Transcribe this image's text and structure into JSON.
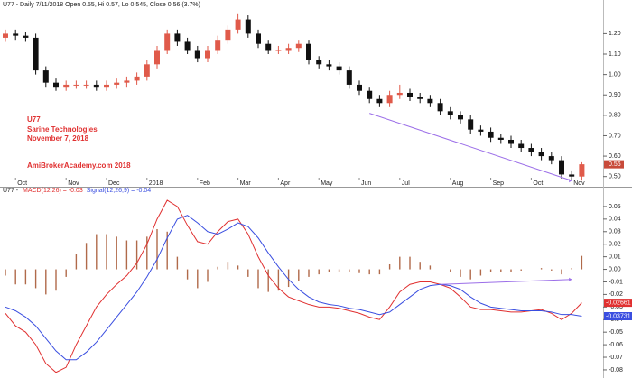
{
  "chart_data": [
    {
      "type": "candlestick",
      "header": "U77 - Daily 7/11/2018 Open 0.55, Hi 0.57, Lo 0.545, Close 0.56 (3.7%)",
      "annotations": [
        "U77",
        "Sarine Technologies",
        "November 7, 2018",
        "AmiBrokerAcademy.com  2018"
      ],
      "annotation_color": "#e03030",
      "categories": [
        null,
        "Oct",
        null,
        null,
        null,
        null,
        "Nov",
        null,
        null,
        null,
        "Dec",
        null,
        null,
        null,
        "2018",
        null,
        null,
        null,
        null,
        "Feb",
        null,
        null,
        null,
        "Mar",
        null,
        null,
        null,
        "Apr",
        null,
        null,
        null,
        "May",
        null,
        null,
        null,
        "Jun",
        null,
        null,
        null,
        "Jul",
        null,
        null,
        null,
        null,
        "Aug",
        null,
        null,
        null,
        "Sep",
        null,
        null,
        null,
        "Oct",
        null,
        null,
        null,
        "Nov",
        null
      ],
      "open": [
        1.18,
        1.2,
        1.19,
        1.18,
        1.02,
        0.96,
        0.94,
        0.95,
        0.95,
        0.95,
        0.94,
        0.95,
        0.96,
        0.97,
        0.99,
        1.05,
        1.12,
        1.2,
        1.16,
        1.12,
        1.08,
        1.12,
        1.17,
        1.22,
        1.27,
        1.2,
        1.15,
        1.12,
        1.12,
        1.13,
        1.15,
        1.07,
        1.05,
        1.04,
        1.02,
        0.95,
        0.92,
        0.88,
        0.86,
        0.9,
        0.91,
        0.89,
        0.88,
        0.86,
        0.82,
        0.8,
        0.78,
        0.73,
        0.72,
        0.69,
        0.68,
        0.66,
        0.64,
        0.62,
        0.6,
        0.58,
        0.51,
        0.5
      ],
      "high": [
        1.22,
        1.22,
        1.21,
        1.2,
        1.04,
        0.98,
        0.97,
        0.97,
        0.97,
        0.97,
        0.97,
        0.98,
        0.99,
        1.01,
        1.07,
        1.14,
        1.22,
        1.22,
        1.18,
        1.14,
        1.14,
        1.19,
        1.24,
        1.3,
        1.29,
        1.22,
        1.17,
        1.14,
        1.15,
        1.17,
        1.17,
        1.09,
        1.07,
        1.06,
        1.04,
        0.97,
        0.94,
        0.9,
        0.92,
        0.95,
        0.93,
        0.91,
        0.9,
        0.88,
        0.84,
        0.82,
        0.8,
        0.75,
        0.74,
        0.71,
        0.7,
        0.68,
        0.66,
        0.64,
        0.62,
        0.6,
        0.53,
        0.57
      ],
      "low": [
        1.16,
        1.17,
        1.16,
        1.0,
        0.94,
        0.92,
        0.92,
        0.93,
        0.93,
        0.92,
        0.92,
        0.93,
        0.94,
        0.95,
        0.97,
        1.03,
        1.1,
        1.14,
        1.1,
        1.06,
        1.06,
        1.1,
        1.15,
        1.2,
        1.18,
        1.13,
        1.1,
        1.1,
        1.1,
        1.11,
        1.05,
        1.03,
        1.02,
        1.0,
        0.93,
        0.9,
        0.86,
        0.84,
        0.84,
        0.88,
        0.87,
        0.86,
        0.84,
        0.8,
        0.78,
        0.76,
        0.71,
        0.7,
        0.67,
        0.66,
        0.64,
        0.62,
        0.6,
        0.58,
        0.56,
        0.49,
        0.48,
        0.48
      ],
      "close": [
        1.2,
        1.19,
        1.18,
        1.02,
        0.96,
        0.94,
        0.95,
        0.95,
        0.95,
        0.94,
        0.95,
        0.96,
        0.97,
        0.99,
        1.05,
        1.12,
        1.2,
        1.16,
        1.12,
        1.08,
        1.12,
        1.17,
        1.22,
        1.27,
        1.2,
        1.15,
        1.12,
        1.12,
        1.13,
        1.15,
        1.07,
        1.05,
        1.04,
        1.02,
        0.95,
        0.92,
        0.88,
        0.86,
        0.9,
        0.91,
        0.89,
        0.88,
        0.86,
        0.82,
        0.8,
        0.78,
        0.73,
        0.72,
        0.69,
        0.68,
        0.66,
        0.64,
        0.62,
        0.6,
        0.58,
        0.51,
        0.5,
        0.56
      ],
      "up_color": "#e05a4a",
      "down_color": "#111111",
      "ylim": [
        0.45,
        1.33
      ],
      "yticks": [
        {
          "value": 0.5,
          "label": "0.50"
        },
        {
          "value": 0.6,
          "label": "0.60"
        },
        {
          "value": 0.7,
          "label": "0.70"
        },
        {
          "value": 0.8,
          "label": "0.80"
        },
        {
          "value": 0.9,
          "label": "0.90"
        },
        {
          "value": 1.0,
          "label": "1.00"
        },
        {
          "value": 1.1,
          "label": "1.10"
        },
        {
          "value": 1.2,
          "label": "1.20"
        }
      ],
      "trendline": {
        "x": [
          36,
          56
        ],
        "y": [
          0.81,
          0.48
        ],
        "color": "#9b6ee8"
      }
    },
    {
      "type": "macd",
      "header": "U77 - ",
      "series": [
        {
          "name": "MACD(12,26) = -0.03",
          "color": "#e03030",
          "values": [
            -0.035,
            -0.045,
            -0.05,
            -0.06,
            -0.075,
            -0.082,
            -0.078,
            -0.06,
            -0.045,
            -0.03,
            -0.02,
            -0.012,
            -0.005,
            0.005,
            0.02,
            0.04,
            0.055,
            0.05,
            0.035,
            0.022,
            0.02,
            0.03,
            0.038,
            0.04,
            0.028,
            0.01,
            -0.005,
            -0.015,
            -0.022,
            -0.025,
            -0.028,
            -0.03,
            -0.03,
            -0.031,
            -0.033,
            -0.035,
            -0.038,
            -0.04,
            -0.03,
            -0.018,
            -0.012,
            -0.01,
            -0.01,
            -0.012,
            -0.015,
            -0.022,
            -0.03,
            -0.032,
            -0.032,
            -0.033,
            -0.034,
            -0.034,
            -0.033,
            -0.032,
            -0.035,
            -0.04,
            -0.035,
            -0.02661
          ]
        },
        {
          "name": "Signal(12,26,9) = -0.04",
          "color": "#3a4ee0",
          "values": [
            -0.03,
            -0.033,
            -0.038,
            -0.045,
            -0.055,
            -0.065,
            -0.072,
            -0.072,
            -0.066,
            -0.058,
            -0.048,
            -0.038,
            -0.028,
            -0.018,
            -0.006,
            0.008,
            0.025,
            0.04,
            0.043,
            0.037,
            0.03,
            0.028,
            0.032,
            0.037,
            0.034,
            0.025,
            0.013,
            0.002,
            -0.008,
            -0.016,
            -0.022,
            -0.026,
            -0.028,
            -0.029,
            -0.031,
            -0.032,
            -0.034,
            -0.036,
            -0.034,
            -0.028,
            -0.022,
            -0.016,
            -0.013,
            -0.012,
            -0.013,
            -0.016,
            -0.022,
            -0.027,
            -0.03,
            -0.031,
            -0.032,
            -0.033,
            -0.033,
            -0.033,
            -0.034,
            -0.036,
            -0.036,
            -0.03731
          ]
        }
      ],
      "histogram": {
        "color": "#b06a4a",
        "values": [
          -0.005,
          -0.012,
          -0.012,
          -0.015,
          -0.02,
          -0.017,
          -0.006,
          0.012,
          0.021,
          0.028,
          0.028,
          0.026,
          0.023,
          0.023,
          0.026,
          0.032,
          0.03,
          0.01,
          -0.008,
          -0.015,
          -0.01,
          0.002,
          0.006,
          0.003,
          -0.006,
          -0.015,
          -0.018,
          -0.017,
          -0.014,
          -0.009,
          -0.006,
          -0.004,
          -0.002,
          -0.002,
          -0.002,
          -0.003,
          -0.004,
          -0.004,
          0.004,
          0.01,
          0.01,
          0.006,
          0.003,
          0,
          -0.002,
          -0.006,
          -0.008,
          -0.005,
          -0.002,
          -0.002,
          -0.002,
          -0.001,
          0,
          0.001,
          -0.001,
          -0.004,
          0.001,
          0.0107
        ]
      },
      "ylim": [
        -0.0865,
        0.06
      ],
      "yticks": [
        -0.08,
        -0.07,
        -0.06,
        -0.05,
        -0.04,
        -0.03,
        -0.02,
        -0.01,
        {
          "value": 0,
          "label": "0.00"
        },
        0.01,
        0.02,
        0.03,
        0.04,
        0.05
      ],
      "trendline": {
        "x": [
          43,
          56
        ],
        "y": [
          -0.012,
          -0.008
        ],
        "color": "#9b6ee8"
      }
    }
  ]
}
